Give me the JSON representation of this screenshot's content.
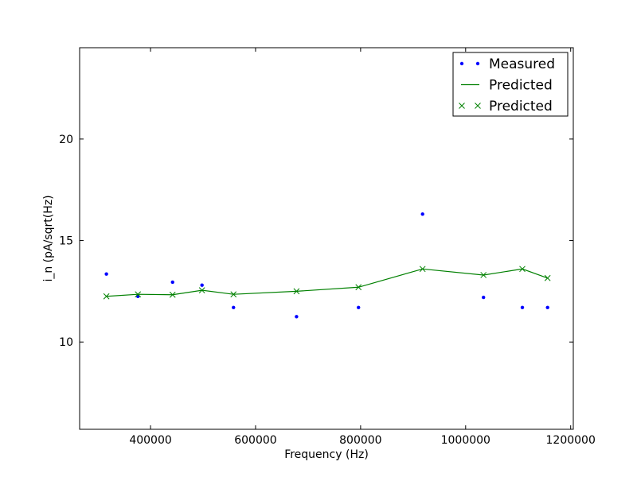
{
  "chart_data": {
    "type": "line",
    "xlabel": "Frequency (Hz)",
    "ylabel": "i_n (pA/sqrt(Hz)",
    "xlim": [
      265000,
      1205000
    ],
    "ylim": [
      5.7,
      24.5
    ],
    "xticks": [
      400000,
      600000,
      800000,
      1000000,
      1200000
    ],
    "xtick_labels": [
      "400000",
      "600000",
      "800000",
      "1000000",
      "1200000"
    ],
    "yticks": [
      10,
      15,
      20
    ],
    "ytick_labels": [
      "10",
      "15",
      "20"
    ],
    "grid": false,
    "legend_position": "top-right",
    "series": [
      {
        "name": "Measured",
        "style": "dots",
        "color": "#0000ff",
        "x": [
          316000,
          376000,
          442000,
          498000,
          558000,
          678000,
          796000,
          918000,
          1034000,
          1108000,
          1156000
        ],
        "y": [
          13.35,
          12.25,
          12.95,
          12.8,
          11.7,
          11.25,
          11.7,
          16.3,
          12.2,
          11.7,
          11.7
        ]
      },
      {
        "name": "Predicted",
        "style": "line",
        "color": "#008000",
        "x": [
          316000,
          376000,
          442000,
          498000,
          558000,
          678000,
          796000,
          918000,
          1034000,
          1108000,
          1156000
        ],
        "y": [
          12.25,
          12.35,
          12.33,
          12.55,
          12.35,
          12.5,
          12.7,
          13.6,
          13.3,
          13.6,
          13.15
        ]
      },
      {
        "name": "Predicted",
        "style": "x-markers",
        "color": "#008000",
        "x": [
          316000,
          376000,
          442000,
          498000,
          558000,
          678000,
          796000,
          918000,
          1034000,
          1108000,
          1156000
        ],
        "y": [
          12.25,
          12.35,
          12.33,
          12.55,
          12.35,
          12.5,
          12.7,
          13.6,
          13.3,
          13.6,
          13.15
        ]
      }
    ]
  }
}
